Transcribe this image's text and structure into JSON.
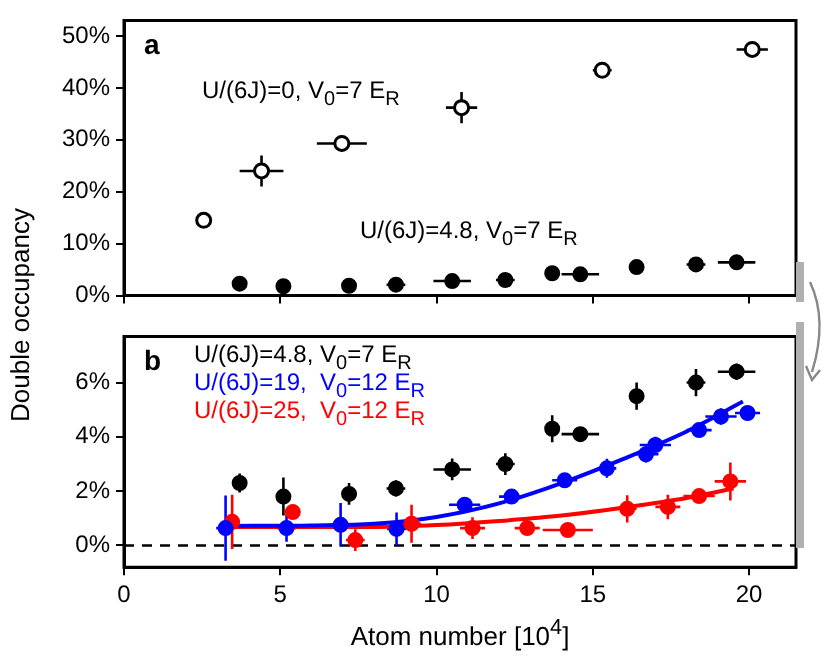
{
  "chart_data": [
    {
      "type": "scatter",
      "title": "a",
      "ylabel": "Double occupancy",
      "xlim": [
        0,
        21.5
      ],
      "xticks": [
        0,
        5,
        10,
        15,
        20
      ],
      "ylim": [
        0,
        53
      ],
      "yticks": [
        {
          "value": 0,
          "label": "0%"
        },
        {
          "value": 10,
          "label": "10%"
        },
        {
          "value": 20,
          "label": "20%"
        },
        {
          "value": 30,
          "label": "30%"
        },
        {
          "value": 40,
          "label": "40%"
        },
        {
          "value": 50,
          "label": "50%"
        }
      ],
      "tick_labels": "y",
      "marker": "circle",
      "series": [
        {
          "name": "U/(6J)=0, V$_{0}$=7 E$_{R}$",
          "color": "#000000",
          "x": [
            2.55,
            4.4,
            6.97,
            10.8,
            15.3,
            20.1
          ],
          "values": [
            14.5,
            24,
            29.3,
            36.2,
            43.4,
            47.4
          ],
          "errors": [
            0.8,
            3,
            1.5,
            3,
            1.2,
            1
          ],
          "xerrors": [
            null,
            0.7,
            0.8,
            0.5,
            0.3,
            0.5
          ]
        },
        {
          "name": "U/(6J)=4.8, V$_{0}$=7 E$_{R}$",
          "color": "#000000",
          "x": [
            3.7,
            5.1,
            7.2,
            8.7,
            10.5,
            12.2,
            13.7,
            14.6,
            16.4,
            18.3,
            19.6
          ],
          "values": [
            2.3,
            1.8,
            1.9,
            2.1,
            2.8,
            3,
            4.3,
            4.1,
            5.5,
            6,
            6.4
          ],
          "xerrors": [
            0.2,
            0.2,
            0.2,
            0.3,
            0.6,
            0.3,
            0.2,
            0.6,
            0.2,
            0.3,
            0.6
          ]
        }
      ]
    },
    {
      "type": "scatter",
      "title": "b",
      "xlabel": "Atom number [10$^{4}$]",
      "xlim": [
        0,
        21.5
      ],
      "xticks": [
        0,
        5,
        10,
        15,
        20
      ],
      "ylim": [
        -0.8,
        7.7
      ],
      "yticks": [
        {
          "value": 0,
          "label": "0%"
        },
        {
          "value": 2,
          "label": "2%"
        },
        {
          "value": 4,
          "label": "4%"
        },
        {
          "value": 6,
          "label": "6%"
        }
      ],
      "marker": "circle",
      "ref_lines": [
        {
          "axis": "y",
          "value": 0,
          "color": "#000000",
          "line_style": "dashed"
        }
      ],
      "series": [
        {
          "name": "U/(6J)=4.8, V$_{0}$=7 E$_{R}$",
          "color": "#000000",
          "x": [
            3.7,
            5.1,
            7.2,
            8.7,
            10.5,
            12.2,
            13.7,
            14.6,
            16.4,
            18.3,
            19.6
          ],
          "values": [
            2.3,
            1.8,
            1.9,
            2.1,
            2.8,
            3,
            4.3,
            4.1,
            5.5,
            6,
            6.4
          ],
          "errors": [
            0.35,
            0.7,
            0.4,
            0.3,
            0.4,
            0.4,
            0.5,
            0.1,
            0.5,
            0.5,
            0.3
          ],
          "xerrors": [
            0.2,
            0.2,
            0.2,
            0.3,
            0.6,
            0.3,
            0.2,
            0.6,
            0.2,
            0.3,
            0.6
          ]
        },
        {
          "name": "U/(6J)=19,  V$_{0}$=12 E$_{R}$",
          "color": "#0000ff",
          "x": [
            3.25,
            5.2,
            6.93,
            8.72,
            10.9,
            12.4,
            14.1,
            15.45,
            16.7,
            17,
            18.4,
            19.1,
            19.95
          ],
          "values": [
            0.64,
            0.64,
            0.76,
            0.61,
            1.5,
            1.8,
            2.4,
            2.84,
            3.36,
            3.7,
            4.25,
            4.75,
            4.88
          ],
          "errors": [
            1.2,
            0.5,
            0.8,
            0.6,
            0.25,
            0.25,
            0.25,
            0.35,
            0.3,
            0.3,
            0.15,
            0.3,
            0.1
          ],
          "xerrors": [
            0.3,
            0.3,
            0.3,
            0.3,
            0.5,
            0.4,
            0.4,
            0.3,
            0.4,
            0.5,
            0.4,
            0.5,
            0.4
          ]
        },
        {
          "name": "U/(6J)=25,  V$_{0}$=12 E$_{R}$",
          "color": "#ff0000",
          "x": [
            3.46,
            5.4,
            7.4,
            9.2,
            11.15,
            12.9,
            14.2,
            16.1,
            17.4,
            18.4,
            19.4
          ],
          "values": [
            0.87,
            1.23,
            0.2,
            0.8,
            0.64,
            0.64,
            0.57,
            1.35,
            1.42,
            1.82,
            2.36
          ],
          "errors": [
            1,
            0.1,
            0.4,
            0.7,
            0.4,
            0.15,
            0.15,
            0.5,
            0.45,
            0.25,
            0.7
          ],
          "xerrors": [
            0.2,
            0.1,
            0.3,
            0.3,
            0.4,
            0.4,
            0.8,
            0.3,
            0.4,
            0.5,
            0.5
          ]
        },
        {
          "type": "line",
          "color": "#0000ff",
          "marker": "none",
          "x": [
            3.2,
            6,
            8,
            10,
            12,
            14,
            16,
            18,
            19.8
          ],
          "values": [
            0.72,
            0.74,
            0.8,
            1.05,
            1.55,
            2.3,
            3.2,
            4.2,
            5.3
          ]
        },
        {
          "type": "line",
          "color": "#ff0000",
          "marker": "none",
          "x": [
            3.2,
            8,
            10,
            12,
            14,
            16,
            18,
            19.5
          ],
          "values": [
            0.68,
            0.68,
            0.75,
            0.9,
            1.1,
            1.4,
            1.75,
            2.1
          ]
        }
      ]
    }
  ]
}
